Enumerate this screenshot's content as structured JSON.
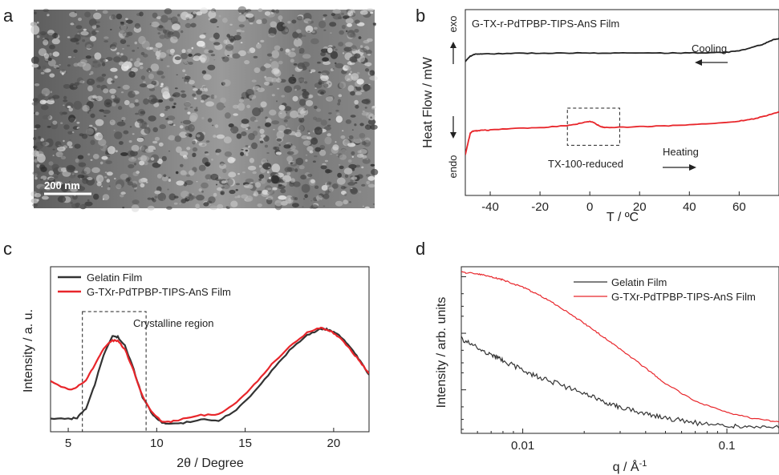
{
  "panels": {
    "a": {
      "letter": "a",
      "scale_bar_label": "200 nm"
    },
    "b": {
      "letter": "b"
    },
    "c": {
      "letter": "c"
    },
    "d": {
      "letter": "d"
    }
  },
  "chart_data": [
    {
      "id": "b",
      "type": "line",
      "title": "G-TX-r-PdTPBP-TIPS-AnS Film",
      "xlabel": "T / ºC",
      "ylabel": "Heat Flow / mW",
      "y_top_label": "exo",
      "y_bottom_label": "endo",
      "xlim": [
        -50,
        76
      ],
      "ylim": [
        0,
        10
      ],
      "xticks": [
        -40,
        -20,
        0,
        20,
        40,
        60
      ],
      "yticks_shown": false,
      "grid": false,
      "annotations": {
        "cooling": "Cooling",
        "heating": "Heating",
        "box_label": "TX-100-reduced",
        "box_range_x": [
          -9,
          12
        ],
        "box_range_y": [
          2.7,
          4.7
        ]
      },
      "series": [
        {
          "color": "#222222",
          "x": [
            -50,
            -48,
            -46,
            -44,
            -40,
            -30,
            -20,
            -10,
            0,
            10,
            20,
            30,
            40,
            50,
            55,
            60,
            65,
            70,
            73,
            76
          ],
          "y": [
            7.2,
            7.5,
            7.6,
            7.62,
            7.62,
            7.65,
            7.66,
            7.66,
            7.67,
            7.66,
            7.66,
            7.66,
            7.67,
            7.68,
            7.7,
            7.8,
            7.95,
            8.15,
            8.35,
            8.45
          ]
        },
        {
          "color": "#e8262b",
          "x": [
            -50,
            -48,
            -47,
            -46,
            -44,
            -40,
            -30,
            -20,
            -10,
            -5,
            -2,
            0,
            2,
            4,
            6,
            10,
            20,
            30,
            40,
            50,
            60,
            65,
            70,
            76
          ],
          "y": [
            2.2,
            3.35,
            3.45,
            3.47,
            3.5,
            3.52,
            3.6,
            3.65,
            3.75,
            3.85,
            3.95,
            3.98,
            3.9,
            3.72,
            3.65,
            3.66,
            3.7,
            3.74,
            3.8,
            3.87,
            4.0,
            4.1,
            4.25,
            4.5
          ]
        }
      ]
    },
    {
      "id": "c",
      "type": "line",
      "xlabel": "2θ  / Degree",
      "ylabel": "Intensity / a. u.",
      "xlim": [
        4,
        22
      ],
      "ylim": [
        0,
        10
      ],
      "xticks": [
        5,
        10,
        15,
        20
      ],
      "yticks_shown": false,
      "grid": false,
      "legend_position": "top-left",
      "annotations": {
        "box_label": "Crystalline region",
        "box_range_x": [
          5.8,
          9.4
        ]
      },
      "series": [
        {
          "name": "Gelatin Film",
          "color": "#333333",
          "x": [
            4,
            5,
            5.5,
            6,
            6.5,
            7,
            7.5,
            7.8,
            8.2,
            8.7,
            9.2,
            9.8,
            10.3,
            10.8,
            11.5,
            12.5,
            13.5,
            14.5,
            15.5,
            16.5,
            17.5,
            18.5,
            19.2,
            19.6,
            20,
            20.5,
            21,
            21.5,
            22
          ],
          "y": [
            0.5,
            0.5,
            0.6,
            1.3,
            3.2,
            5.6,
            7.0,
            7.0,
            6.3,
            4.4,
            2.2,
            0.8,
            0.2,
            0.1,
            0.2,
            0.45,
            0.4,
            1.2,
            2.6,
            4.3,
            5.9,
            7.1,
            7.6,
            7.6,
            7.4,
            6.9,
            6.1,
            5.1,
            4.0
          ]
        },
        {
          "name": "G-TXr-PdTPBP-TIPS-AnS Film",
          "color": "#e8262b",
          "x": [
            4,
            5,
            5.5,
            6,
            6.5,
            7,
            7.5,
            7.8,
            8.2,
            8.7,
            9.2,
            9.8,
            10.3,
            10.8,
            11.5,
            12.5,
            13.5,
            14.5,
            15.5,
            16.5,
            17.5,
            18.5,
            19.2,
            19.6,
            20,
            20.5,
            21,
            21.5,
            22
          ],
          "y": [
            3.5,
            2.8,
            3.0,
            3.6,
            4.8,
            6.1,
            6.7,
            6.7,
            6.0,
            4.3,
            2.3,
            0.9,
            0.3,
            0.3,
            0.5,
            0.8,
            0.9,
            1.8,
            3.2,
            4.8,
            6.2,
            7.3,
            7.7,
            7.6,
            7.3,
            6.7,
            5.9,
            5.0,
            4.1
          ]
        }
      ]
    },
    {
      "id": "d",
      "type": "line",
      "xlabel": "q / Å-1",
      "ylabel": "Intensity / arb. units",
      "x_scale": "log",
      "y_scale": "log",
      "xlim": [
        0.005,
        0.18
      ],
      "xticks": [
        0.01,
        0.1
      ],
      "yticks_shown": false,
      "grid": false,
      "legend_position": "top-right",
      "series": [
        {
          "name": "Gelatin Film",
          "color": "#333333",
          "x": [
            0.005,
            0.006,
            0.007,
            0.008,
            0.01,
            0.012,
            0.015,
            0.02,
            0.025,
            0.03,
            0.04,
            0.05,
            0.07,
            0.1,
            0.13,
            0.18
          ],
          "y": [
            8.0,
            5.5,
            4.2,
            3.3,
            2.2,
            1.7,
            1.25,
            0.85,
            0.62,
            0.5,
            0.38,
            0.32,
            0.26,
            0.23,
            0.22,
            0.21
          ]
        },
        {
          "name": "G-TXr-PdTPBP-TIPS-AnS Film",
          "color": "#e8262b",
          "x": [
            0.005,
            0.006,
            0.007,
            0.008,
            0.01,
            0.012,
            0.015,
            0.02,
            0.025,
            0.03,
            0.04,
            0.05,
            0.07,
            0.1,
            0.13,
            0.18
          ],
          "y": [
            120,
            112,
            100,
            88,
            65,
            48,
            30,
            15,
            8.5,
            5.3,
            2.4,
            1.3,
            0.62,
            0.4,
            0.32,
            0.27
          ]
        }
      ]
    }
  ]
}
